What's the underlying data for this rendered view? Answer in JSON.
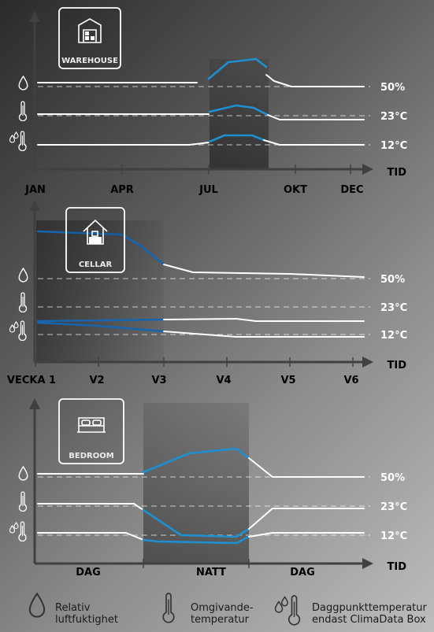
{
  "colors": {
    "accent": "#1e8fd0",
    "accent_dark": "#1565b0",
    "white": "#ffffff",
    "axis": "#404040"
  },
  "icons": [
    "warehouse-icon",
    "cellar-icon",
    "bedroom-icon",
    "droplet-icon",
    "thermometer-icon",
    "dewpoint-icon"
  ],
  "panels": [
    {
      "id": "warehouse",
      "title": "WAREHOUSE",
      "icon": "warehouse-icon",
      "x_ticks": [
        "JAN",
        "APR",
        "JUL",
        "OKT",
        "DEC"
      ],
      "value_labels": [
        "50%",
        "23°C",
        "12°C"
      ],
      "axis_label": "TID"
    },
    {
      "id": "cellar",
      "title": "CELLAR",
      "icon": "cellar-icon",
      "x_ticks": [
        "VECKA 1",
        "V2",
        "V3",
        "V4",
        "V5",
        "V6"
      ],
      "value_labels": [
        "50%",
        "23°C",
        "12°C"
      ],
      "axis_label": "TID"
    },
    {
      "id": "bedroom",
      "title": "BEDROOM",
      "icon": "bedroom-icon",
      "x_ticks": [
        "DAG",
        "NATT",
        "DAG"
      ],
      "value_labels": [
        "50%",
        "23°C",
        "12°C"
      ],
      "axis_label": "TID"
    }
  ],
  "legend": [
    {
      "icon": "droplet-icon",
      "text1": "Relativ",
      "text2": "luftfuktighet"
    },
    {
      "icon": "thermometer-icon",
      "text1": "Omgivande-",
      "text2": "temperatur"
    },
    {
      "icon": "dewpoint-icon",
      "text1": "Daggpunkttemperatur",
      "text2": "endast ClimaData Box"
    }
  ],
  "chart_data": [
    {
      "type": "line",
      "title": "WAREHOUSE",
      "categories": [
        "JAN",
        "APR",
        "JUL",
        "OKT",
        "DEC"
      ],
      "xlabel": "TID",
      "series": [
        {
          "name": "Relativ luftfuktighet",
          "reference": "50%",
          "values": [
            50,
            50,
            72,
            50,
            50
          ]
        },
        {
          "name": "Omgivandetemperatur",
          "reference": "23°C",
          "values": [
            23,
            23,
            26,
            22,
            22
          ]
        },
        {
          "name": "Daggpunkttemperatur",
          "reference": "12°C",
          "values": [
            12,
            12,
            15,
            12,
            12
          ]
        }
      ]
    },
    {
      "type": "line",
      "title": "CELLAR",
      "categories": [
        "VECKA 1",
        "V2",
        "V3",
        "V4",
        "V5",
        "V6"
      ],
      "xlabel": "TID",
      "series": [
        {
          "name": "Relativ luftfuktighet",
          "reference": "50%",
          "values": [
            80,
            72,
            58,
            53,
            53,
            51
          ]
        },
        {
          "name": "Omgivandetemperatur",
          "reference": "23°C",
          "values": [
            17,
            17,
            17,
            17,
            17,
            17
          ]
        },
        {
          "name": "Daggpunkttemperatur",
          "reference": "12°C",
          "values": [
            16,
            15,
            13,
            12,
            12,
            12
          ]
        }
      ]
    },
    {
      "type": "line",
      "title": "BEDROOM",
      "categories": [
        "DAG",
        "NATT",
        "DAG"
      ],
      "xlabel": "TID",
      "series": [
        {
          "name": "Relativ luftfuktighet",
          "reference": "50%",
          "values": [
            50,
            66,
            50
          ]
        },
        {
          "name": "Omgivandetemperatur",
          "reference": "23°C",
          "values": [
            23,
            13,
            22
          ]
        },
        {
          "name": "Daggpunkttemperatur",
          "reference": "12°C",
          "values": [
            12,
            9,
            12
          ]
        }
      ]
    }
  ]
}
